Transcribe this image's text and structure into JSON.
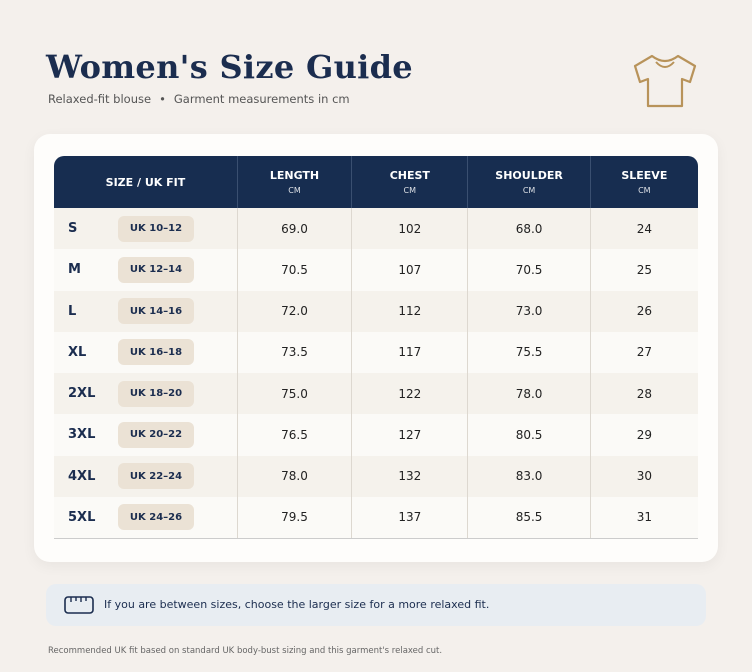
{
  "header": {
    "title": "Women's Size Guide",
    "subtitle": [
      "Relaxed-fit blouse",
      "Garment measurements in cm"
    ]
  },
  "table": {
    "columns": [
      {
        "name": "SIZE / UK FIT"
      },
      {
        "name": "LENGTH",
        "unit": "CM"
      },
      {
        "name": "CHEST",
        "unit": "CM"
      },
      {
        "name": "SHOULDER",
        "unit": "CM"
      },
      {
        "name": "SLEEVE",
        "unit": "CM"
      }
    ],
    "rows": [
      [
        "S",
        "UK 10–12",
        "69.0",
        "102",
        "68.0",
        "24"
      ],
      [
        "M",
        "UK 12–14",
        "70.5",
        "107",
        "70.5",
        "25"
      ],
      [
        "L",
        "UK 14–16",
        "72.0",
        "112",
        "73.0",
        "26"
      ],
      [
        "XL",
        "UK 16–18",
        "73.5",
        "117",
        "75.5",
        "27"
      ],
      [
        "2XL",
        "UK 18–20",
        "75.0",
        "122",
        "78.0",
        "28"
      ],
      [
        "3XL",
        "UK 20–22",
        "76.5",
        "127",
        "80.5",
        "29"
      ],
      [
        "4XL",
        "UK 22–24",
        "78.0",
        "132",
        "83.0",
        "30"
      ],
      [
        "5XL",
        "UK 24–26",
        "79.5",
        "137",
        "85.5",
        "31"
      ]
    ]
  },
  "note": "If you are between sizes, choose the larger size for a more relaxed fit.",
  "footer": "Recommended UK fit based on standard UK body-bust sizing and this garment's relaxed cut."
}
